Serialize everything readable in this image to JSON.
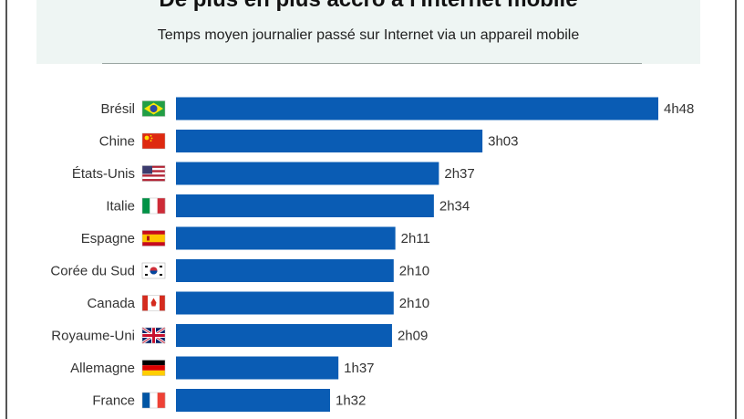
{
  "header": {
    "title": "De plus en plus accro à l'Internet mobile",
    "subtitle": "Temps moyen journalier passé sur Internet via un appareil mobile"
  },
  "chart_data": {
    "type": "bar",
    "orientation": "horizontal",
    "title": "De plus en plus accro à l'Internet mobile",
    "subtitle": "Temps moyen journalier passé sur Internet via un appareil mobile",
    "xlabel": "",
    "ylabel": "",
    "unit": "minutes",
    "grid": false,
    "bar_color": "#0a5cb4",
    "xlim": [
      0,
      300
    ],
    "categories": [
      "Brésil",
      "Chine",
      "États-Unis",
      "Italie",
      "Espagne",
      "Corée du Sud",
      "Canada",
      "Royaume-Uni",
      "Allemagne",
      "France"
    ],
    "values": [
      288,
      183,
      157,
      154,
      131,
      130,
      130,
      129,
      97,
      92
    ],
    "value_labels": [
      "4h48",
      "3h03",
      "2h37",
      "2h34",
      "2h11",
      "2h10",
      "2h10",
      "2h09",
      "1h37",
      "1h32"
    ],
    "flags": [
      "brazil-flag-icon",
      "china-flag-icon",
      "usa-flag-icon",
      "italy-flag-icon",
      "spain-flag-icon",
      "south-korea-flag-icon",
      "canada-flag-icon",
      "uk-flag-icon",
      "germany-flag-icon",
      "france-flag-icon"
    ]
  }
}
